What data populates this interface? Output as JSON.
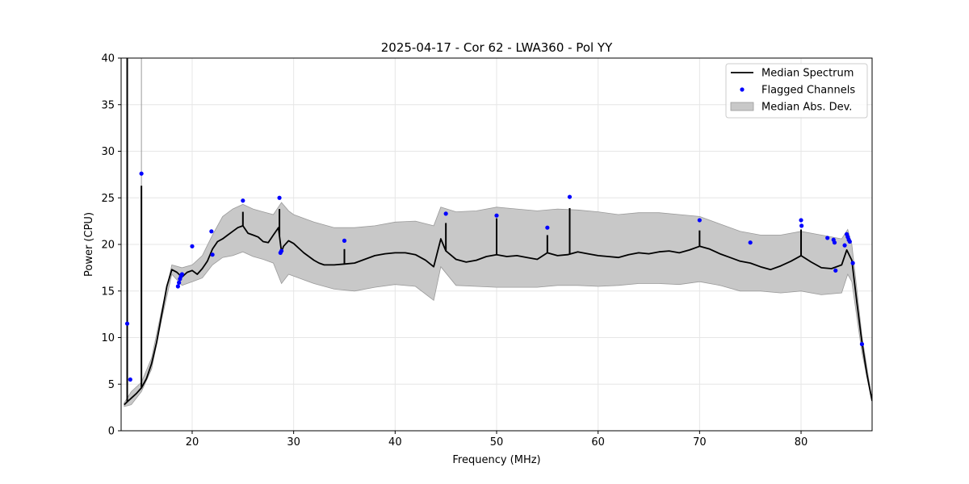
{
  "chart_data": {
    "type": "line",
    "title": "2025-04-17 - Cor 62 - LWA360 - Pol YY",
    "xlabel": "Frequency (MHz)",
    "ylabel": "Power (CPU)",
    "xlim": [
      13,
      87
    ],
    "ylim": [
      0,
      40
    ],
    "xticks": [
      20,
      30,
      40,
      50,
      60,
      70,
      80
    ],
    "yticks": [
      0,
      5,
      10,
      15,
      20,
      25,
      30,
      35,
      40
    ],
    "grid": true,
    "legend_position": "top-right",
    "legend": [
      {
        "label": "Median Spectrum",
        "kind": "line"
      },
      {
        "label": "Flagged Channels",
        "kind": "marker"
      },
      {
        "label": "Median Abs. Dev.",
        "kind": "band"
      }
    ],
    "colors": {
      "line": "#000000",
      "flag": "#0000ff",
      "band": "#c8c8c8",
      "band_edge": "#9a9a9a",
      "grid": "#e6e6e6"
    },
    "series": [
      {
        "name": "Median Spectrum",
        "x": [
          13.3,
          13.7,
          14.0,
          14.5,
          15.0,
          15.5,
          16.0,
          16.5,
          17.0,
          17.5,
          18.0,
          18.5,
          19.0,
          19.5,
          20.0,
          20.5,
          21.0,
          21.5,
          22.0,
          22.5,
          23.0,
          23.5,
          24.0,
          24.5,
          25.0,
          25.5,
          26.0,
          26.5,
          27.0,
          27.5,
          28.0,
          28.5,
          28.8,
          29.0,
          29.5,
          30.0,
          30.5,
          31.0,
          31.5,
          32.0,
          32.5,
          33.0,
          34.0,
          35.0,
          36.0,
          37.0,
          38.0,
          39.0,
          40.0,
          41.0,
          42.0,
          43.0,
          43.8,
          44.5,
          45.0,
          46.0,
          47.0,
          48.0,
          49.0,
          50.0,
          51.0,
          52.0,
          53.0,
          54.0,
          55.0,
          56.0,
          57.0,
          58.0,
          59.0,
          60.0,
          61.0,
          62.0,
          63.0,
          64.0,
          65.0,
          66.0,
          67.0,
          68.0,
          69.0,
          70.0,
          71.0,
          72.0,
          73.0,
          74.0,
          75.0,
          76.0,
          77.0,
          78.0,
          79.0,
          80.0,
          81.0,
          82.0,
          83.0,
          84.0,
          84.5,
          85.0,
          85.5,
          86.0,
          86.5,
          87.0
        ],
        "y": [
          2.8,
          3.2,
          3.5,
          4.0,
          4.6,
          5.6,
          7.2,
          9.5,
          12.5,
          15.5,
          17.3,
          17.0,
          16.5,
          17.0,
          17.2,
          16.8,
          17.4,
          18.2,
          19.5,
          20.3,
          20.6,
          21.0,
          21.4,
          21.8,
          22.0,
          21.2,
          21.0,
          20.8,
          20.3,
          20.2,
          21.0,
          21.8,
          19.2,
          19.8,
          20.4,
          20.1,
          19.6,
          19.1,
          18.7,
          18.3,
          18.0,
          17.8,
          17.8,
          17.9,
          18.0,
          18.4,
          18.8,
          19.0,
          19.1,
          19.1,
          18.9,
          18.3,
          17.6,
          20.6,
          19.3,
          18.4,
          18.1,
          18.3,
          18.7,
          18.9,
          18.7,
          18.8,
          18.6,
          18.4,
          19.1,
          18.8,
          18.9,
          19.2,
          19.0,
          18.8,
          18.7,
          18.6,
          18.9,
          19.1,
          19.0,
          19.2,
          19.3,
          19.1,
          19.4,
          19.8,
          19.5,
          19.0,
          18.6,
          18.2,
          18.0,
          17.6,
          17.3,
          17.7,
          18.2,
          18.8,
          18.1,
          17.5,
          17.4,
          17.8,
          19.4,
          18.3,
          13.8,
          9.5,
          6.0,
          3.2
        ]
      }
    ],
    "spikes": [
      {
        "x": 13.6,
        "y": 40
      },
      {
        "x": 15.0,
        "y": 26.3
      },
      {
        "x": 25.0,
        "y": 23.5
      },
      {
        "x": 28.6,
        "y": 23.8
      },
      {
        "x": 35.0,
        "y": 19.5
      },
      {
        "x": 45.0,
        "y": 22.3
      },
      {
        "x": 50.0,
        "y": 22.8
      },
      {
        "x": 55.0,
        "y": 21.0
      },
      {
        "x": 57.2,
        "y": 23.9
      },
      {
        "x": 70.0,
        "y": 21.5
      },
      {
        "x": 80.0,
        "y": 21.6
      }
    ],
    "mad_band": {
      "x": [
        13.3,
        14.0,
        15.0,
        16.0,
        17.0,
        18.0,
        19.0,
        20.0,
        21.0,
        22.0,
        23.0,
        24.0,
        25.0,
        26.0,
        27.0,
        28.0,
        28.8,
        29.5,
        30.0,
        32.0,
        34.0,
        36.0,
        38.0,
        40.0,
        42.0,
        43.8,
        44.5,
        46.0,
        48.0,
        50.0,
        52.0,
        54.0,
        56.0,
        58.0,
        60.0,
        62.0,
        64.0,
        66.0,
        68.0,
        70.0,
        72.0,
        74.0,
        76.0,
        78.0,
        80.0,
        82.0,
        84.0,
        84.6,
        85.0,
        85.5,
        86.0,
        87.0
      ],
      "upper": [
        3.0,
        4.2,
        5.2,
        7.8,
        13.0,
        17.8,
        17.5,
        17.8,
        18.8,
        21.0,
        23.0,
        23.8,
        24.3,
        23.8,
        23.5,
        23.2,
        24.5,
        23.6,
        23.2,
        22.4,
        21.8,
        21.8,
        22.0,
        22.4,
        22.5,
        22.0,
        24.0,
        23.5,
        23.6,
        24.0,
        23.8,
        23.6,
        23.8,
        23.7,
        23.5,
        23.2,
        23.4,
        23.4,
        23.2,
        23.0,
        22.2,
        21.4,
        21.0,
        21.0,
        21.4,
        21.0,
        20.6,
        21.6,
        20.0,
        15.2,
        10.2,
        3.3
      ],
      "lower": [
        2.6,
        2.8,
        4.2,
        6.6,
        12.0,
        16.8,
        15.6,
        16.0,
        16.4,
        17.8,
        18.6,
        18.8,
        19.2,
        18.7,
        18.4,
        18.0,
        15.8,
        16.8,
        16.6,
        15.8,
        15.2,
        15.0,
        15.4,
        15.7,
        15.5,
        14.0,
        17.6,
        15.6,
        15.5,
        15.4,
        15.4,
        15.4,
        15.6,
        15.6,
        15.5,
        15.6,
        15.8,
        15.8,
        15.7,
        16.0,
        15.6,
        15.0,
        15.0,
        14.8,
        15.0,
        14.6,
        14.8,
        16.8,
        16.0,
        12.2,
        8.4,
        3.1
      ]
    },
    "flagged_channels": {
      "x": [
        13.6,
        13.9,
        15.0,
        18.6,
        18.7,
        18.8,
        18.9,
        19.0,
        20.0,
        21.9,
        22.0,
        25.0,
        28.6,
        28.7,
        28.8,
        35.0,
        45.0,
        50.0,
        55.0,
        57.2,
        70.0,
        75.0,
        80.0,
        80.05,
        82.6,
        83.2,
        83.3,
        83.4,
        84.3,
        84.5,
        84.6,
        84.7,
        84.8,
        85.1,
        86.0
      ],
      "y": [
        11.5,
        5.5,
        27.6,
        15.5,
        15.9,
        16.3,
        16.6,
        16.8,
        19.8,
        21.4,
        18.9,
        24.7,
        25.0,
        19.1,
        19.3,
        20.4,
        23.3,
        23.1,
        21.8,
        25.1,
        22.6,
        20.2,
        22.6,
        22.0,
        20.7,
        20.5,
        20.2,
        17.2,
        19.9,
        21.1,
        20.8,
        20.5,
        20.3,
        18.0,
        9.3
      ]
    }
  }
}
